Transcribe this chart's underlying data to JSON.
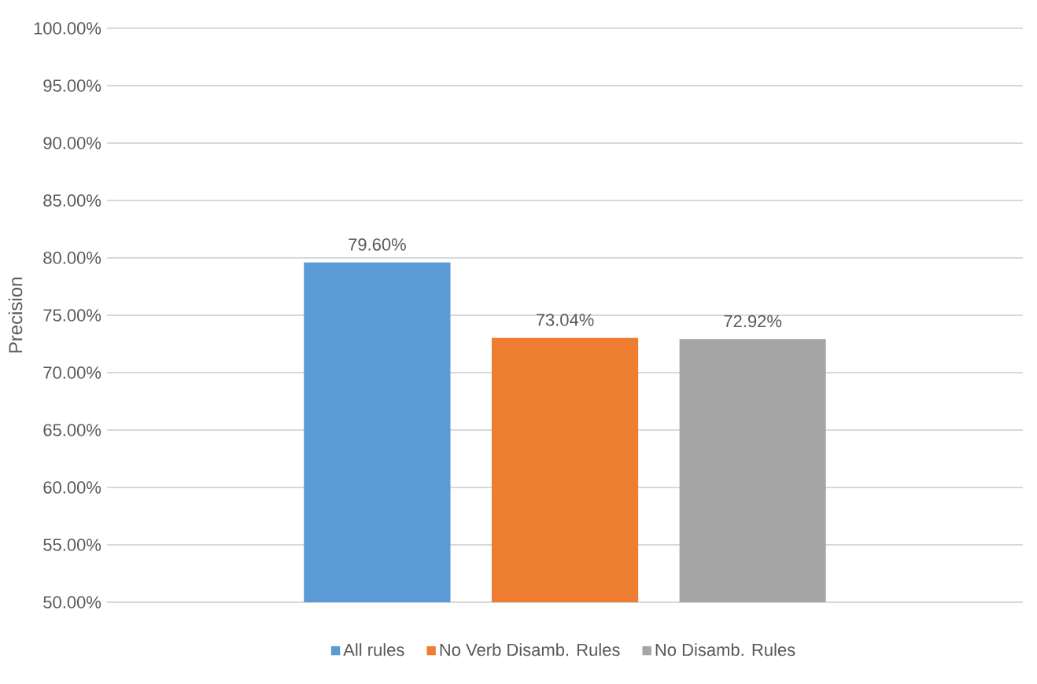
{
  "chart_data": {
    "type": "bar",
    "ylabel": "Precision",
    "categories": [
      null
    ],
    "series": [
      {
        "name": "All rules",
        "color": "#5b9bd5",
        "values": [
          79.6
        ],
        "value_labels": [
          "79.60%"
        ]
      },
      {
        "name": "No Verb Disamb. Rules",
        "color": "#ed7d31",
        "values": [
          73.04
        ],
        "value_labels": [
          "73.04%"
        ]
      },
      {
        "name": "No Disamb. Rules",
        "color": "#a5a5a5",
        "values": [
          72.92
        ],
        "value_labels": [
          "72.92%"
        ]
      }
    ],
    "ylim": [
      50,
      100
    ],
    "yticks": [
      {
        "value": 50,
        "label": "50.00%"
      },
      {
        "value": 55,
        "label": "55.00%"
      },
      {
        "value": 60,
        "label": "60.00%"
      },
      {
        "value": 65,
        "label": "65.00%"
      },
      {
        "value": 70,
        "label": "70.00%"
      },
      {
        "value": 75,
        "label": "75.00%"
      },
      {
        "value": 80,
        "label": "80.00%"
      },
      {
        "value": 85,
        "label": "85.00%"
      },
      {
        "value": 90,
        "label": "90.00%"
      },
      {
        "value": 95,
        "label": "95.00%"
      },
      {
        "value": 100,
        "label": "100.00%"
      }
    ],
    "grid": "y",
    "legend": "bottom"
  }
}
